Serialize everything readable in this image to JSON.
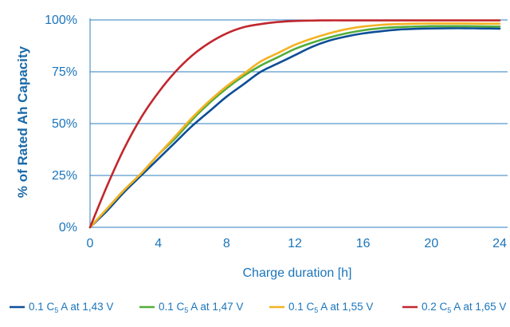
{
  "chart_data": {
    "type": "line",
    "xlabel": "Charge duration [h]",
    "ylabel": "% of Rated Ah Capacity",
    "xlim": [
      0,
      24
    ],
    "ylim": [
      0,
      100
    ],
    "xticks": [
      0,
      4,
      8,
      12,
      16,
      20,
      24
    ],
    "yticks": [
      0,
      25,
      50,
      75,
      100
    ],
    "ytick_labels": [
      "0%",
      "25%",
      "50%",
      "75%",
      "100%"
    ],
    "grid": "horizontal",
    "legend_position": "bottom",
    "x": [
      0,
      1,
      2,
      3,
      4,
      5,
      6,
      7,
      8,
      9,
      10,
      11,
      12,
      13,
      14,
      15,
      16,
      17,
      18,
      19,
      20,
      21,
      22,
      23,
      24
    ],
    "series": [
      {
        "name": "0.1 C5 A at 1,43 V",
        "legend": {
          "pre": "0.1 C",
          "sub": "5",
          "post": " A at 1,43 V"
        },
        "color": "#0d4e97",
        "values": [
          0,
          8,
          17,
          25,
          33,
          41,
          49,
          56,
          63,
          69,
          75,
          79,
          83,
          87,
          90,
          92,
          93.5,
          94.5,
          95.3,
          95.7,
          95.9,
          96,
          96,
          95.9,
          95.8
        ]
      },
      {
        "name": "0.1 C5 A at 1,47 V",
        "legend": {
          "pre": "0.1 C",
          "sub": "5",
          "post": " A at 1,47 V"
        },
        "color": "#52ad3a",
        "values": [
          0,
          9,
          18,
          26,
          35,
          43,
          52,
          60,
          67,
          73,
          78,
          82,
          86,
          89,
          91.5,
          93.5,
          95,
          96,
          96.5,
          96.8,
          97,
          97,
          97,
          96.9,
          96.8
        ]
      },
      {
        "name": "0.1 C5 A at 1,55 V",
        "legend": {
          "pre": "0.1 C",
          "sub": "5",
          "post": " A at 1,55 V"
        },
        "color": "#f4b223",
        "values": [
          0,
          9,
          18,
          26,
          35,
          44,
          53,
          61,
          68,
          74,
          80,
          84,
          88,
          91,
          93.5,
          95.5,
          96.8,
          97.6,
          98,
          98.2,
          98.3,
          98.3,
          98.3,
          98.2,
          98.2
        ]
      },
      {
        "name": "0.2 C5 A at 1,65 V",
        "legend": {
          "pre": "0.2 C",
          "sub": "5",
          "post": " A at 1,65 V"
        },
        "color": "#c1272d",
        "values": [
          0,
          20,
          38,
          53,
          65,
          75,
          83,
          89,
          93.5,
          96.5,
          98,
          99,
          99.5,
          99.7,
          99.8,
          99.8,
          99.8,
          99.8,
          99.8,
          99.8,
          99.8,
          99.8,
          99.8,
          99.8,
          99.8
        ]
      }
    ]
  }
}
